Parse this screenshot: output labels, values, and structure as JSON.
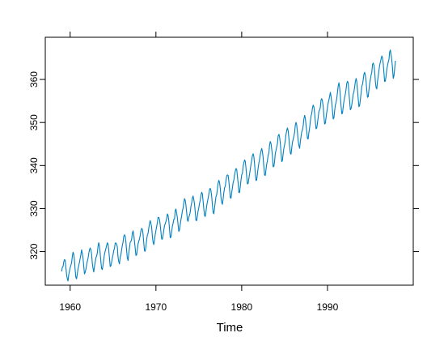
{
  "chart_data": {
    "type": "line",
    "title": "",
    "xlabel": "Time",
    "ylabel": "",
    "xlim": [
      1957.1,
      2000.0
    ],
    "ylim": [
      312.2,
      369.8
    ],
    "x_ticks": [
      1960,
      1970,
      1980,
      1990
    ],
    "x_tick_labels": [
      "1960",
      "1970",
      "1980",
      "1990"
    ],
    "y_ticks": [
      320,
      330,
      340,
      350,
      360
    ],
    "y_tick_labels": [
      "320",
      "330",
      "340",
      "350",
      "360"
    ],
    "grid": false,
    "legend": "none",
    "line_color": "#0080c0",
    "series": [
      {
        "x_start": 1959.0,
        "x_step": 0.0833333,
        "values": [
          315.42,
          316.31,
          316.5,
          317.56,
          318.13,
          318.0,
          316.39,
          314.65,
          313.68,
          313.18,
          314.66,
          315.43,
          316.27,
          316.81,
          317.42,
          318.87,
          319.87,
          319.43,
          318.01,
          315.74,
          314.0,
          313.68,
          314.84,
          316.03,
          316.73,
          317.54,
          318.38,
          319.31,
          320.42,
          319.61,
          318.42,
          316.63,
          314.83,
          315.16,
          315.94,
          316.85,
          317.78,
          318.4,
          319.53,
          320.42,
          320.85,
          320.45,
          319.45,
          317.25,
          316.11,
          315.27,
          316.53,
          317.53,
          318.58,
          318.92,
          319.7,
          321.22,
          322.08,
          321.31,
          319.58,
          317.61,
          316.05,
          315.83,
          316.91,
          318.2,
          319.41,
          320.07,
          320.74,
          321.4,
          322.06,
          321.73,
          320.27,
          318.54,
          316.54,
          316.71,
          317.53,
          318.55,
          319.27,
          320.28,
          320.73,
          321.97,
          322.0,
          321.71,
          321.05,
          318.71,
          317.66,
          317.14,
          318.7,
          319.25,
          320.46,
          321.43,
          322.23,
          323.54,
          323.91,
          323.59,
          322.24,
          320.2,
          318.48,
          317.94,
          319.63,
          320.87,
          322.17,
          322.34,
          322.88,
          324.25,
          324.83,
          323.93,
          322.38,
          320.76,
          319.1,
          319.24,
          320.56,
          321.8,
          322.4,
          322.99,
          323.73,
          324.86,
          325.4,
          325.2,
          323.98,
          321.95,
          320.18,
          320.09,
          321.16,
          322.74,
          323.83,
          324.26,
          325.47,
          326.5,
          327.21,
          326.54,
          325.72,
          323.5,
          322.22,
          321.62,
          322.69,
          323.95,
          324.89,
          325.82,
          326.77,
          327.97,
          327.91,
          327.5,
          326.18,
          324.53,
          322.93,
          322.9,
          323.85,
          324.96,
          326.01,
          326.51,
          327.01,
          327.62,
          328.76,
          328.4,
          327.2,
          325.27,
          323.2,
          323.4,
          324.63,
          325.85,
          326.6,
          327.47,
          327.58,
          329.56,
          329.9,
          328.92,
          327.88,
          326.16,
          324.68,
          325.04,
          326.34,
          327.39,
          328.37,
          329.4,
          330.14,
          331.33,
          332.31,
          331.9,
          330.7,
          329.15,
          327.35,
          327.02,
          327.99,
          328.48,
          329.18,
          330.55,
          331.32,
          332.48,
          332.92,
          332.08,
          331.01,
          329.23,
          327.27,
          327.21,
          328.29,
          329.41,
          330.23,
          331.25,
          331.87,
          333.14,
          333.8,
          333.43,
          331.73,
          329.9,
          328.4,
          328.17,
          329.32,
          330.59,
          331.58,
          332.39,
          333.33,
          334.41,
          334.71,
          334.17,
          332.89,
          330.77,
          329.14,
          328.78,
          330.14,
          331.52,
          332.75,
          333.24,
          334.53,
          335.9,
          336.57,
          336.1,
          334.76,
          332.59,
          331.42,
          330.98,
          332.24,
          333.68,
          334.8,
          335.22,
          336.47,
          337.59,
          337.84,
          337.72,
          336.37,
          334.51,
          332.6,
          332.38,
          333.75,
          334.78,
          336.05,
          336.59,
          337.79,
          338.71,
          339.3,
          339.12,
          337.56,
          335.92,
          333.75,
          333.7,
          335.12,
          336.56,
          337.84,
          338.19,
          339.91,
          340.6,
          341.29,
          341.0,
          339.39,
          337.43,
          335.72,
          335.84,
          336.93,
          338.04,
          339.06,
          340.3,
          341.21,
          342.33,
          342.74,
          342.08,
          340.32,
          338.26,
          336.52,
          336.68,
          338.19,
          339.44,
          340.57,
          341.44,
          342.53,
          343.39,
          343.96,
          343.18,
          341.88,
          339.65,
          337.81,
          337.69,
          339.09,
          340.32,
          341.2,
          342.35,
          342.93,
          344.77,
          345.58,
          345.14,
          343.81,
          342.21,
          339.69,
          339.82,
          340.98,
          342.82,
          343.52,
          344.33,
          345.11,
          346.88,
          347.25,
          346.62,
          345.22,
          343.11,
          340.9,
          341.18,
          342.8,
          344.04,
          344.79,
          345.82,
          347.25,
          348.17,
          348.74,
          348.07,
          346.38,
          344.51,
          342.92,
          342.62,
          344.06,
          345.38,
          346.11,
          346.78,
          347.68,
          349.37,
          350.03,
          349.37,
          347.76,
          345.73,
          344.68,
          343.99,
          345.48,
          346.72,
          347.84,
          348.29,
          349.23,
          350.8,
          351.66,
          351.07,
          349.33,
          347.92,
          346.27,
          346.18,
          347.64,
          348.78,
          350.25,
          351.54,
          352.05,
          353.41,
          354.04,
          353.62,
          352.22,
          350.27,
          348.55,
          348.72,
          349.91,
          351.18,
          352.6,
          352.92,
          353.53,
          355.26,
          355.52,
          354.97,
          353.75,
          351.52,
          349.64,
          349.83,
          351.14,
          352.37,
          353.5,
          354.55,
          355.23,
          356.04,
          357.0,
          356.07,
          354.67,
          352.76,
          350.82,
          351.04,
          352.69,
          354.07,
          354.59,
          355.63,
          357.03,
          358.48,
          359.22,
          358.12,
          356.06,
          353.92,
          352.05,
          352.11,
          353.64,
          354.89,
          355.88,
          356.63,
          357.72,
          359.07,
          359.58,
          359.17,
          356.94,
          354.92,
          352.94,
          353.23,
          354.09,
          355.33,
          356.63,
          357.1,
          358.32,
          359.41,
          360.23,
          359.55,
          357.53,
          355.48,
          353.67,
          353.95,
          355.3,
          356.78,
          358.34,
          358.89,
          359.95,
          361.25,
          361.67,
          360.94,
          359.55,
          357.49,
          355.84,
          356.0,
          357.59,
          359.05,
          359.98,
          361.03,
          361.66,
          363.48,
          363.82,
          363.3,
          361.94,
          359.5,
          358.11,
          357.8,
          359.61,
          360.74,
          362.09,
          363.29,
          364.06,
          364.76,
          365.45,
          365.01,
          363.7,
          361.54,
          359.51,
          359.65,
          360.8,
          362.38,
          363.23,
          364.06,
          364.61,
          366.4,
          366.84,
          365.68,
          364.52,
          362.57,
          360.24,
          360.83,
          362.49,
          364.34
        ]
      }
    ]
  }
}
